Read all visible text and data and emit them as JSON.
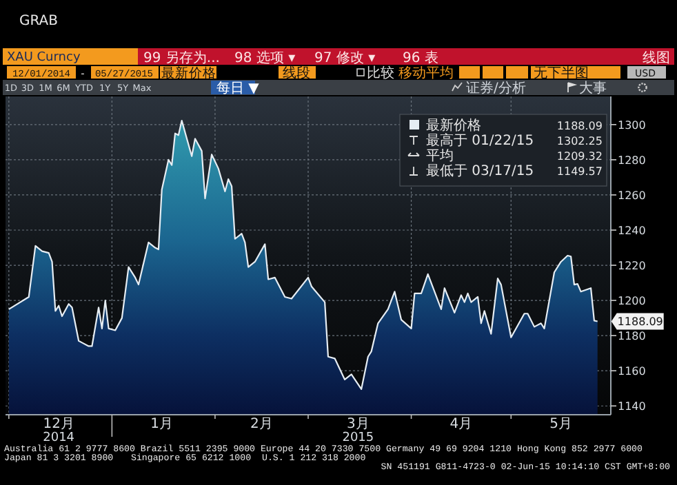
{
  "chart_data": {
    "type": "area",
    "title": "GRAB",
    "x": [
      "2014-12-01",
      "2014-12-07",
      "2014-12-09",
      "2014-12-11",
      "2014-12-13",
      "2014-12-14",
      "2014-12-15",
      "2014-12-16",
      "2014-12-17",
      "2014-12-19",
      "2014-12-20",
      "2014-12-22",
      "2014-12-23",
      "2014-12-25",
      "2014-12-26",
      "2014-12-28",
      "2014-12-29",
      "2014-12-30",
      "2014-12-31",
      "2015-01-02",
      "2015-01-04",
      "2015-01-06",
      "2015-01-08",
      "2015-01-09",
      "2015-01-12",
      "2015-01-14",
      "2015-01-15",
      "2015-01-16",
      "2015-01-18",
      "2015-01-19",
      "2015-01-20",
      "2015-01-21",
      "2015-01-22",
      "2015-01-25",
      "2015-01-26",
      "2015-01-28",
      "2015-01-29",
      "2015-01-31",
      "2015-02-02",
      "2015-02-04",
      "2015-02-05",
      "2015-02-06",
      "2015-02-07",
      "2015-02-09",
      "2015-02-10",
      "2015-02-11",
      "2015-02-13",
      "2015-02-16",
      "2015-02-17",
      "2015-02-19",
      "2015-02-22",
      "2015-02-24",
      "2015-03-01",
      "2015-03-02",
      "2015-03-06",
      "2015-03-07",
      "2015-03-09",
      "2015-03-12",
      "2015-03-14",
      "2015-03-17",
      "2015-03-19",
      "2015-03-20",
      "2015-03-22",
      "2015-03-25",
      "2015-03-27",
      "2015-03-29",
      "2015-04-01",
      "2015-04-02",
      "2015-04-04",
      "2015-04-06",
      "2015-04-10",
      "2015-04-11",
      "2015-04-14",
      "2015-04-16",
      "2015-04-17",
      "2015-04-18",
      "2015-04-19",
      "2015-04-21",
      "2015-04-22",
      "2015-04-23",
      "2015-04-25",
      "2015-04-27",
      "2015-04-28",
      "2015-05-01",
      "2015-05-05",
      "2015-05-06",
      "2015-05-08",
      "2015-05-10",
      "2015-05-11",
      "2015-05-14",
      "2015-05-16",
      "2015-05-18",
      "2015-05-19",
      "2015-05-20",
      "2015-05-21",
      "2015-05-22",
      "2015-05-25",
      "2015-05-26",
      "2015-05-27"
    ],
    "series": [
      {
        "name": "最新价格",
        "color": "#e6edf3",
        "values": [
          1195,
          1202,
          1231,
          1228,
          1227,
          1222,
          1194,
          1197,
          1191,
          1198,
          1196,
          1177,
          1176,
          1174,
          1174,
          1196,
          1184,
          1200,
          1184,
          1183,
          1190,
          1219,
          1213,
          1209,
          1233,
          1230,
          1229,
          1263,
          1280,
          1277,
          1295,
          1294,
          1302.25,
          1282,
          1292,
          1285,
          1258,
          1283,
          1275,
          1262,
          1269,
          1265,
          1235,
          1238,
          1233,
          1219,
          1222,
          1232,
          1212,
          1213,
          1202,
          1201,
          1213,
          1208,
          1199,
          1168,
          1167,
          1155,
          1158,
          1149.57,
          1168,
          1171,
          1187,
          1195,
          1205,
          1189,
          1184,
          1204,
          1204,
          1215,
          1195,
          1207,
          1193,
          1203,
          1199,
          1204,
          1199,
          1202,
          1187,
          1194,
          1181,
          1212.5,
          1209,
          1179,
          1192.5,
          1192.5,
          1185,
          1187,
          1184,
          1216,
          1222,
          1225.5,
          1225,
          1209,
          1209.4,
          1205,
          1207,
          1188.5,
          1188.09
        ]
      }
    ],
    "xlim": [
      "2014-11-30",
      "2015-05-31"
    ],
    "xticks": [
      {
        "value": "2014-12-01",
        "label": null
      },
      {
        "value": "2014-12-16",
        "label": "12月\n2014"
      },
      {
        "value": "2015-01-01",
        "label": null
      },
      {
        "value": "2015-01-16",
        "label": "1月"
      },
      {
        "value": "2015-02-01",
        "label": null
      },
      {
        "value": "2015-02-15",
        "label": "2月"
      },
      {
        "value": "2015-03-01",
        "label": null
      },
      {
        "value": "2015-03-16",
        "label": "3月\n2015"
      },
      {
        "value": "2015-04-01",
        "label": null
      },
      {
        "value": "2015-04-16",
        "label": "4月"
      },
      {
        "value": "2015-05-01",
        "label": null
      },
      {
        "value": "2015-05-16",
        "label": "5月"
      }
    ],
    "ylim": [
      1135,
      1316
    ],
    "yticks": [
      1140,
      1160,
      1180,
      1200,
      1220,
      1240,
      1260,
      1280,
      1300
    ],
    "grid": true,
    "legend": "top right",
    "annotations": [
      "XAU Curncy",
      "99 另存为...",
      "98 选项 ▾",
      "97 修改 ▾",
      "96 表",
      "线图",
      "12/01/2014",
      "-",
      "05/27/2015",
      "最新价格",
      "线段",
      "比较",
      "移动平均",
      "无下半图",
      "USD",
      "1D",
      "3D",
      "1M",
      "6M",
      "YTD",
      "1Y",
      "5Y",
      "Max",
      "每日 ▼",
      "证券/分析",
      "大事",
      "最高于 01/22/15",
      "1302.25",
      "平均",
      "1209.32",
      "最低于 03/17/15",
      "1149.57",
      "1188.09",
      {
        "text": "1188.09",
        "x": "2015-05-27",
        "y": 1188.09
      },
      "Australia 61 2 9777 8600 Brazil 5511 2395 9000 Europe 44 20 7330 7500 Germany 49 69 9204 1210 Hong Kong 852 2977 6000",
      "Japan 81 3 3201 8900",
      "Singapore 65 6212 1000",
      "U.S. 1 212 318 2000",
      "SN 451191 G811-4723-0 02-Jun-15 10:14:10 CST  GMT+8:00"
    ]
  }
}
